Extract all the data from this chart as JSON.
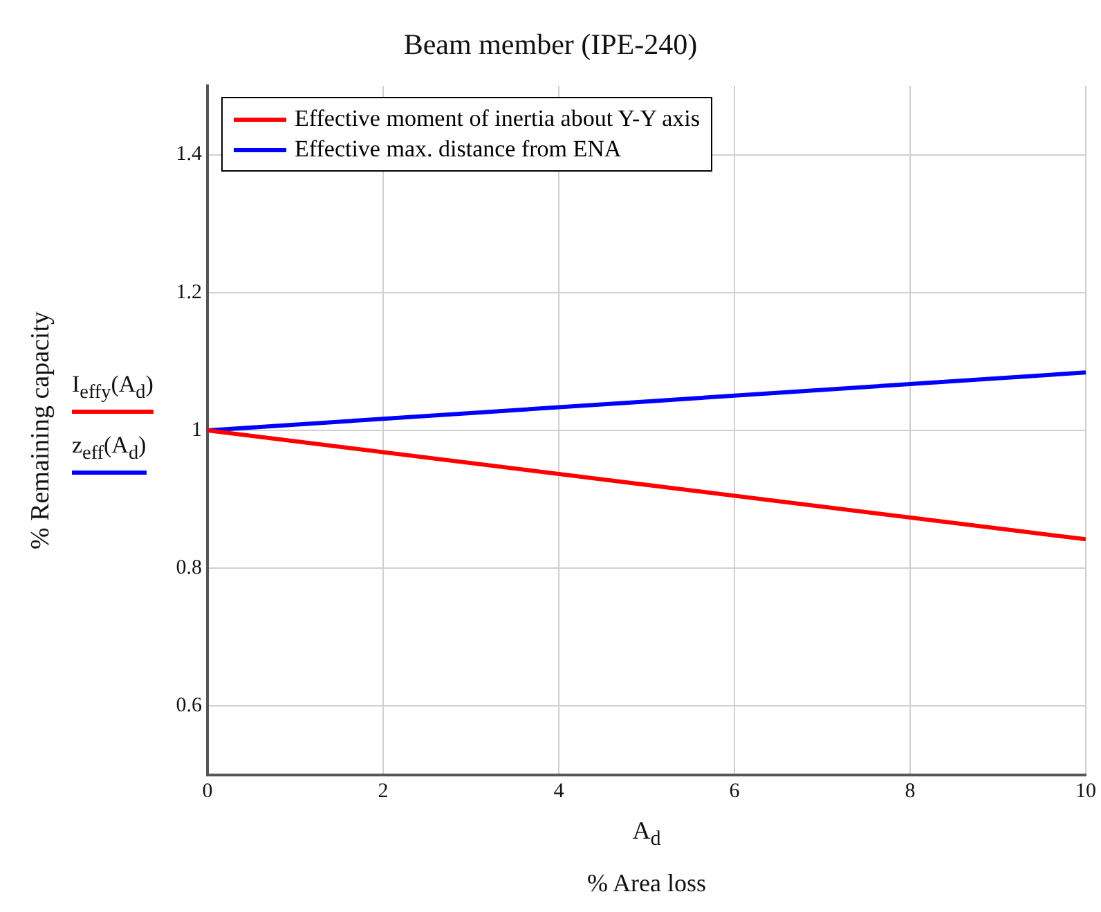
{
  "chart_data": {
    "type": "line",
    "title": "Beam member (IPE-240)",
    "xlabel": "A$_{d}$\n% Area loss",
    "ylabel": "% Remaining capacity",
    "x": [
      0,
      5,
      10
    ],
    "series": [
      {
        "name": "Effective moment of inertia about Y-Y axis",
        "color": "#ff0000",
        "values": [
          1,
          0.921,
          0.842
        ]
      },
      {
        "name": "Effective max. distance from ENA",
        "color": "#0000ff",
        "values": [
          1,
          1.042,
          1.084
        ]
      }
    ],
    "annotations": [
      "I$_{effy}$(A$_{d}$)",
      "z$_{eff}$(A$_{d}$)"
    ],
    "xlim": [
      0,
      10
    ],
    "xticks": [
      0,
      2,
      4,
      6,
      8,
      10
    ],
    "ylim": [
      0.5,
      1.5
    ],
    "yticks": [
      0.6,
      0.8,
      1,
      1.2,
      1.4
    ],
    "grid": true,
    "legend": "top left",
    "marker": "none",
    "line_style": "solid"
  }
}
